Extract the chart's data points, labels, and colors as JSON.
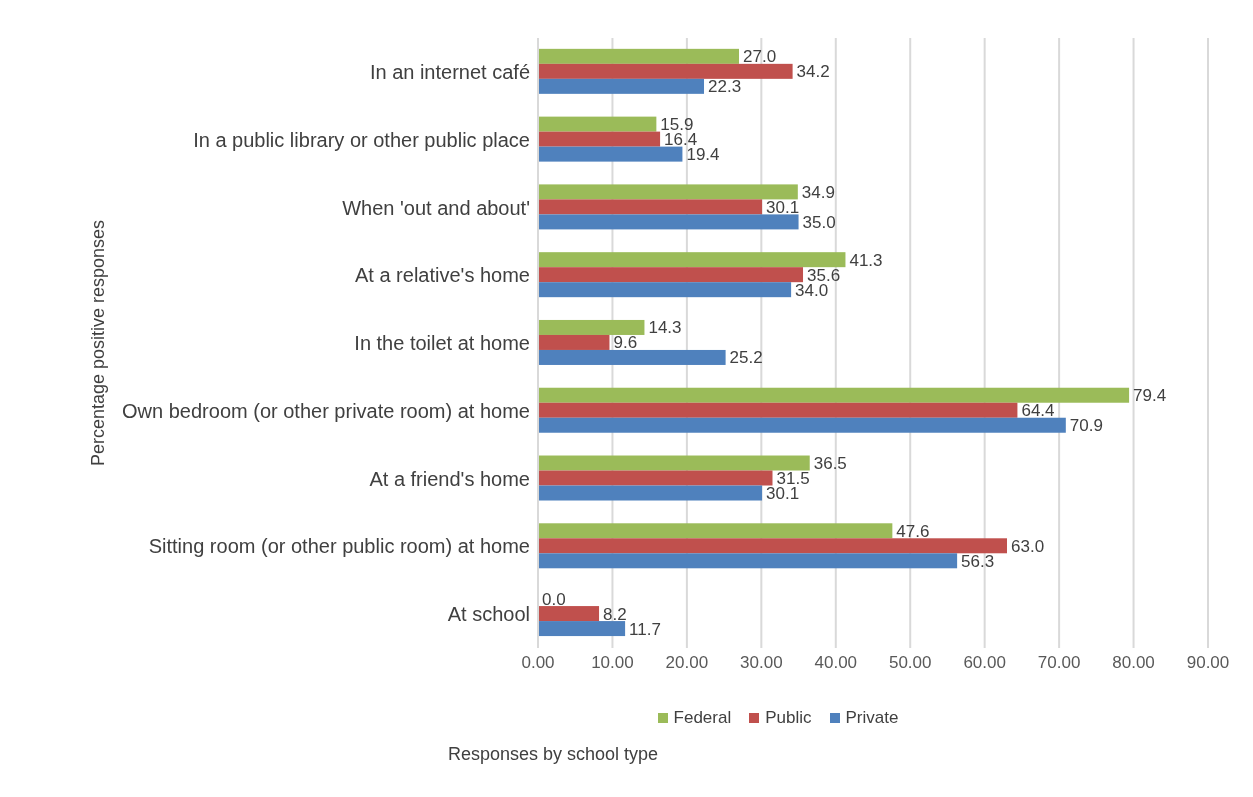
{
  "chart_data": {
    "type": "bar",
    "orientation": "horizontal",
    "xlabel": "Responses by school type",
    "ylabel": "Percentage positive responses",
    "categories": [
      "In an internet café",
      "In a public library or other public place",
      "When 'out and about'",
      "At a relative's home",
      "In the toilet at home",
      "Own bedroom (or other private room) at home",
      "At a friend's home",
      "Sitting room (or other public room) at home",
      "At school"
    ],
    "series": [
      {
        "name": "Federal",
        "color": "#9bbb59",
        "values": [
          27.0,
          15.9,
          34.9,
          41.3,
          14.3,
          79.4,
          36.5,
          47.6,
          0.0
        ],
        "value_labels": [
          "27.0",
          "15.9",
          "34.9",
          "41.3",
          "14.3",
          "79.4",
          "36.5",
          "47.6",
          "0.0"
        ]
      },
      {
        "name": "Public",
        "color": "#c0504d",
        "values": [
          34.2,
          16.4,
          30.1,
          35.6,
          9.6,
          64.4,
          31.5,
          63.0,
          8.2
        ],
        "value_labels": [
          "34.2",
          "16.4",
          "30.1",
          "35.6",
          "9.6",
          "64.4",
          "31.5",
          "63.0",
          "8.2"
        ]
      },
      {
        "name": "Private",
        "color": "#4f81bd",
        "values": [
          22.3,
          19.4,
          35.0,
          34.0,
          25.2,
          70.9,
          30.1,
          56.3,
          11.7
        ],
        "value_labels": [
          "22.3",
          "19.4",
          "35.0",
          "34.0",
          "25.2",
          "70.9",
          "30.1",
          "56.3",
          "11.7"
        ]
      }
    ],
    "xlim": [
      0,
      90
    ],
    "xticks": [
      {
        "value": 0,
        "label": "0.00"
      },
      {
        "value": 10,
        "label": "10.00"
      },
      {
        "value": 20,
        "label": "20.00"
      },
      {
        "value": 30,
        "label": "30.00"
      },
      {
        "value": 40,
        "label": "40.00"
      },
      {
        "value": 50,
        "label": "50.00"
      },
      {
        "value": 60,
        "label": "60.00"
      },
      {
        "value": 70,
        "label": "70.00"
      },
      {
        "value": 80,
        "label": "80.00"
      },
      {
        "value": 90,
        "label": "90.00"
      }
    ],
    "grid": "x",
    "legend": "bottom"
  }
}
